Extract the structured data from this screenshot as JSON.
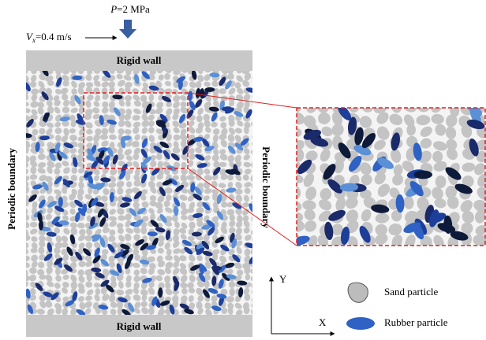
{
  "load": {
    "symbol": "P",
    "value": "=2 MPa"
  },
  "velocity": {
    "symbol": "V",
    "subscript": "x",
    "value": "=0.4 m/s"
  },
  "top_wall": "Rigid wall",
  "bottom_wall": "Rigid wall",
  "left_boundary": "Periodic boundary",
  "right_boundary": "Periodic boundary",
  "axes": {
    "y": "Y",
    "x": "X"
  },
  "legend": {
    "sand": "Sand particle",
    "rubber": "Rubber particle"
  }
}
